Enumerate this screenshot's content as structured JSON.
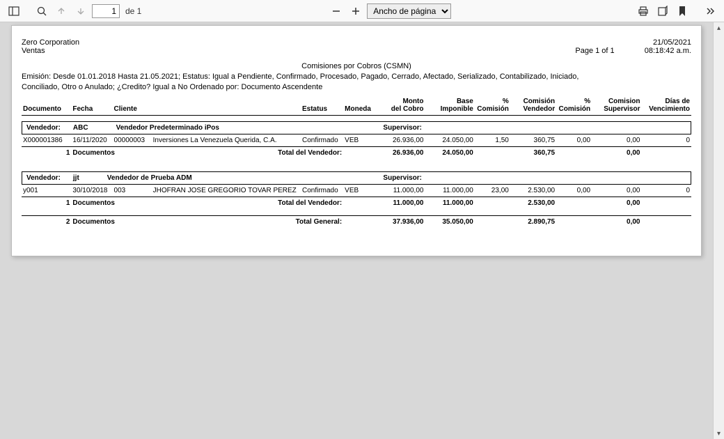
{
  "toolbar": {
    "page_input_value": "1",
    "page_count_label": "de 1",
    "zoom_select": "Ancho de página"
  },
  "report": {
    "company": "Zero Corporation",
    "module": "Ventas",
    "date": "21/05/2021",
    "page_label": "Page 1 of 1",
    "time": "08:18:42 a.m.",
    "title": "Comisiones por Cobros (CSMN)",
    "filters_line1": "Emisión: Desde 01.01.2018  Hasta 21.05.2021; Estatus: Igual a Pendiente, Confirmado, Procesado, Pagado, Cerrado, Afectado, Serializado, Contabilizado, Iniciado,",
    "filters_line2": "Conciliado, Otro o Anulado; ¿Credito? Igual a No Ordenado por: Documento Ascendente",
    "columns": {
      "documento": "Documento",
      "fecha": "Fecha",
      "cliente": "Cliente",
      "estatus": "Estatus",
      "moneda": "Moneda",
      "monto_l1": "Monto",
      "monto_l2": "del Cobro",
      "base_l1": "Base",
      "base_l2": "Imponible",
      "pct_com_l1": "%",
      "pct_com_l2": "Comisión",
      "com_vend_l1": "Comisión",
      "com_vend_l2": "Vendedor",
      "pct_com2_l1": "%",
      "pct_com2_l2": "Comisión",
      "com_sup_l1": "Comision",
      "com_sup_l2": "Supervisor",
      "dias_l1": "Días de",
      "dias_l2": "Vencimiento"
    },
    "labels": {
      "vendedor": "Vendedor:",
      "supervisor": "Supervisor:",
      "documentos": "Documentos",
      "total_vendedor": "Total del Vendedor:",
      "total_general": "Total General:"
    },
    "groups": [
      {
        "code": "ABC",
        "name": "Vendedor Predeterminado iPos",
        "rows": [
          {
            "documento": "X000001386",
            "fecha": "16/11/2020",
            "cliente_code": "00000003",
            "cliente_name": "Inversiones La Venezuela Querida, C.A.",
            "estatus": "Confirmado",
            "moneda": "VEB",
            "monto": "26.936,00",
            "base": "24.050,00",
            "pct_com": "1,50",
            "com_vend": "360,75",
            "pct_com2": "0,00",
            "com_sup": "0,00",
            "dias": "0"
          }
        ],
        "count": "1",
        "totals": {
          "monto": "26.936,00",
          "base": "24.050,00",
          "com_vend": "360,75",
          "com_sup": "0,00"
        }
      },
      {
        "code": "jjt",
        "name": "Vendedor de Prueba ADM",
        "rows": [
          {
            "documento": "y001",
            "fecha": "30/10/2018",
            "cliente_code": "003",
            "cliente_name": "JHOFRAN JOSE GREGORIO TOVAR PEREZ",
            "estatus": "Confirmado",
            "moneda": "VEB",
            "monto": "11.000,00",
            "base": "11.000,00",
            "pct_com": "23,00",
            "com_vend": "2.530,00",
            "pct_com2": "0,00",
            "com_sup": "0,00",
            "dias": "0"
          }
        ],
        "count": "1",
        "totals": {
          "monto": "11.000,00",
          "base": "11.000,00",
          "com_vend": "2.530,00",
          "com_sup": "0,00"
        }
      }
    ],
    "grand": {
      "count": "2",
      "monto": "37.936,00",
      "base": "35.050,00",
      "com_vend": "2.890,75",
      "com_sup": "0,00"
    }
  }
}
